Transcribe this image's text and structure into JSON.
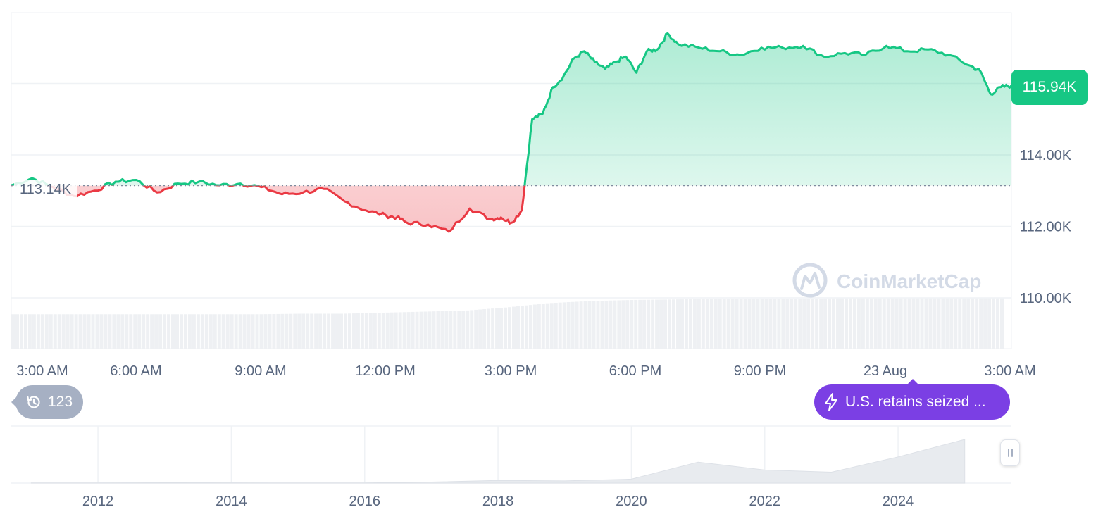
{
  "chart_data": {
    "type": "area",
    "price_axis": {
      "tick_labels": [
        "110.00K",
        "112.00K",
        "114.00K"
      ],
      "ticks": [
        110000,
        112000,
        114000
      ],
      "ylim": [
        109980,
        117980
      ]
    },
    "time_axis": {
      "tick_labels": [
        "3:00 AM",
        "6:00 AM",
        "9:00 AM",
        "12:00 PM",
        "3:00 PM",
        "6:00 PM",
        "9:00 PM",
        "23 Aug",
        "3:00 AM"
      ],
      "xlim": [
        0,
        24
      ]
    },
    "baseline": {
      "value": 113140,
      "label": "113.14K"
    },
    "current_price": {
      "value": 115940,
      "label": "115.94K"
    },
    "series": [
      {
        "x": [
          0,
          0.5,
          1,
          1.5,
          2,
          2.5,
          3,
          3.5,
          4,
          4.5,
          5,
          5.5,
          6,
          6.5,
          7,
          7.5,
          8,
          8.5,
          9,
          9.25,
          9.5,
          10,
          10.5,
          11,
          11.5,
          11.75,
          12,
          12.25,
          12.5,
          12.75,
          13,
          13.25,
          13.5,
          13.75,
          14,
          14.25,
          14.5,
          14.75,
          15,
          15.25,
          15.5,
          15.75,
          16,
          16.5,
          17,
          17.5,
          18,
          18.5,
          19,
          19.5,
          20,
          20.5,
          21,
          21.5,
          22,
          22.5,
          23,
          23.25,
          23.5,
          23.75,
          24
        ],
        "values": [
          113150,
          113350,
          113100,
          112850,
          113000,
          113250,
          113300,
          112950,
          113200,
          113250,
          113150,
          113200,
          113100,
          112900,
          112950,
          113050,
          112700,
          112450,
          112300,
          112250,
          112100,
          112050,
          111850,
          112500,
          112200,
          112250,
          112100,
          112450,
          115000,
          115150,
          115900,
          116200,
          116700,
          116900,
          116600,
          116400,
          116600,
          116750,
          116300,
          116900,
          116950,
          117400,
          117100,
          117000,
          116900,
          116800,
          117000,
          117000,
          117050,
          116750,
          116850,
          116800,
          117050,
          116900,
          116950,
          116800,
          116500,
          116350,
          115700,
          115900,
          115940
        ],
        "line_color_up": "#16c784",
        "line_color_down": "#ea3943"
      }
    ],
    "volume": {
      "values": [
        65,
        65,
        65,
        65,
        65,
        65,
        65,
        66,
        66,
        68,
        70,
        72,
        78,
        86,
        90,
        92,
        93,
        94,
        94,
        94,
        95,
        95,
        95,
        95,
        95
      ]
    },
    "navigator": {
      "tick_labels": [
        "2012",
        "2014",
        "2016",
        "2018",
        "2020",
        "2022",
        "2024"
      ],
      "years": [
        2011,
        2012,
        2013,
        2014,
        2015,
        2016,
        2017,
        2018,
        2019,
        2020,
        2021,
        2022,
        2023,
        2024,
        2025
      ],
      "values": [
        0.5,
        0.5,
        0.8,
        0.6,
        0.4,
        0.5,
        2.5,
        6.0,
        5.0,
        9.0,
        48.0,
        30.0,
        25.0,
        60.0,
        100.0
      ],
      "xlim": [
        2010.7,
        2025.7
      ]
    },
    "watermark": "CoinMarketCap",
    "history_count": "123",
    "news_label": "U.S. retains seized ..."
  },
  "colors": {
    "up": "#16c784",
    "down": "#ea3943",
    "news": "#7b3fe4",
    "muted": "#a6b0c3"
  },
  "icons": {
    "history": "history-clock-icon",
    "news": "lightning-icon",
    "watermark": "coinmarketcap-logo-icon"
  }
}
